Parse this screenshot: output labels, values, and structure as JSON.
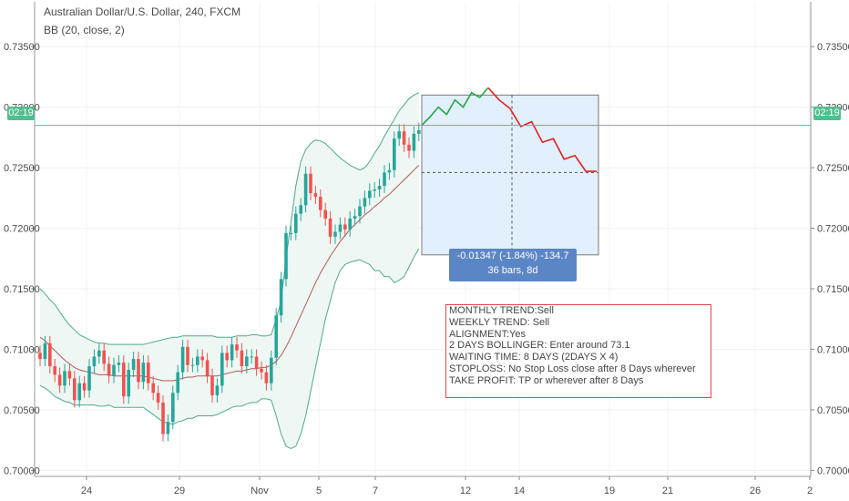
{
  "header": {
    "title": "Australian Dollar/U.S. Dollar, 240, FXCM",
    "indicator": "BB (20, close, 2)"
  },
  "price_tag": "02:19",
  "measure": {
    "line1": "-0.01347 (-1.84%) -134.7",
    "line2": "36 bars, 8d"
  },
  "notes": [
    "MONTHLY TREND:Sell",
    "WEEKLY TREND: Sell",
    "ALIGNMENT:Yes",
    "2 DAYS BOLLINGER: Enter around 73.1",
    "WAITING TIME: 8 DAYS (2DAYS X 4)",
    "STOPLOSS: No Stop Loss close after 8 Days wherever",
    "TAKE PROFIT: TP or wherever after 8 Days"
  ],
  "colors": {
    "up": "#26a69a",
    "down": "#ef5350",
    "bb_band": "#4fa88f",
    "bb_basis": "#b0595a",
    "bb_fill": "#eef7f3",
    "projection_up": "#26a645",
    "projection_down": "#e02020",
    "range_fill": "#ddecfb",
    "current_line": "#4fbf8f"
  },
  "chart_data": {
    "type": "candlestick",
    "symbol": "Australian Dollar/U.S. Dollar",
    "timeframe": "240",
    "source": "FXCM",
    "ylim": [
      0.6995,
      0.7387
    ],
    "y_ticks": [
      "0.70000",
      "0.70500",
      "0.71000",
      "0.71500",
      "0.72000",
      "0.72500",
      "0.73000",
      "0.73500"
    ],
    "x_ticks": [
      "24",
      "29",
      "Nov",
      "5",
      "7",
      "12",
      "14",
      "19",
      "21",
      "26",
      "2"
    ],
    "current_price": 0.7285,
    "close": [
      0.7092,
      0.7105,
      0.7086,
      0.7079,
      0.707,
      0.7082,
      0.7076,
      0.7058,
      0.7072,
      0.7066,
      0.7086,
      0.7094,
      0.7099,
      0.7088,
      0.7078,
      0.7087,
      0.7089,
      0.7061,
      0.7083,
      0.7092,
      0.7073,
      0.7089,
      0.7072,
      0.7064,
      0.7056,
      0.703,
      0.704,
      0.7064,
      0.7081,
      0.7102,
      0.7087,
      0.7087,
      0.7094,
      0.7091,
      0.7078,
      0.7062,
      0.707,
      0.7097,
      0.7091,
      0.7104,
      0.7099,
      0.7086,
      0.7094,
      0.7094,
      0.7084,
      0.7081,
      0.7072,
      0.7093,
      0.7128,
      0.7158,
      0.7196,
      0.7196,
      0.7212,
      0.7219,
      0.7245,
      0.7229,
      0.7226,
      0.7215,
      0.7208,
      0.7193,
      0.7197,
      0.7203,
      0.7199,
      0.7208,
      0.721,
      0.7218,
      0.7225,
      0.7231,
      0.7232,
      0.7235,
      0.7246,
      0.7248,
      0.7274,
      0.728,
      0.7269,
      0.7264,
      0.7278,
      0.7281
    ],
    "bollinger": {
      "period": 20,
      "source": "close",
      "stddev": 2,
      "basis": [
        0.711,
        0.7107,
        0.7103,
        0.7099,
        0.7095,
        0.7091,
        0.7088,
        0.7085,
        0.7083,
        0.7082,
        0.7081,
        0.708,
        0.7079,
        0.7079,
        0.7079,
        0.7078,
        0.7078,
        0.7078,
        0.7078,
        0.7078,
        0.7078,
        0.7078,
        0.7077,
        0.7076,
        0.7075,
        0.7074,
        0.7074,
        0.7074,
        0.7075,
        0.7076,
        0.7077,
        0.7077,
        0.7078,
        0.7078,
        0.7078,
        0.7078,
        0.7078,
        0.7079,
        0.708,
        0.7081,
        0.7082,
        0.7082,
        0.7083,
        0.7084,
        0.7084,
        0.7085,
        0.7085,
        0.7087,
        0.709,
        0.7095,
        0.7102,
        0.711,
        0.7119,
        0.7128,
        0.7137,
        0.7146,
        0.7155,
        0.7163,
        0.717,
        0.7177,
        0.7183,
        0.7189,
        0.7194,
        0.7199,
        0.7203,
        0.7207,
        0.7211,
        0.7214,
        0.7218,
        0.7221,
        0.7225,
        0.7228,
        0.7232,
        0.7236,
        0.724,
        0.7244,
        0.7248,
        0.7252
      ],
      "upper": [
        0.715,
        0.7146,
        0.7141,
        0.7137,
        0.7131,
        0.7125,
        0.712,
        0.7116,
        0.7112,
        0.711,
        0.7108,
        0.7106,
        0.7105,
        0.7105,
        0.7104,
        0.7104,
        0.7104,
        0.7104,
        0.7104,
        0.7104,
        0.7104,
        0.7104,
        0.7105,
        0.7106,
        0.7107,
        0.7108,
        0.7109,
        0.711,
        0.711,
        0.7111,
        0.7111,
        0.7111,
        0.7111,
        0.7111,
        0.7111,
        0.7111,
        0.711,
        0.711,
        0.711,
        0.711,
        0.7111,
        0.7111,
        0.7111,
        0.7112,
        0.7112,
        0.7111,
        0.7111,
        0.7112,
        0.7125,
        0.714,
        0.7175,
        0.7205,
        0.7235,
        0.7255,
        0.7265,
        0.727,
        0.7273,
        0.7272,
        0.727,
        0.7266,
        0.7262,
        0.7258,
        0.7255,
        0.7252,
        0.725,
        0.7248,
        0.725,
        0.7255,
        0.7262,
        0.7268,
        0.7276,
        0.7283,
        0.729,
        0.7297,
        0.7302,
        0.7307,
        0.731,
        0.7312
      ],
      "lower": [
        0.707,
        0.7068,
        0.7065,
        0.7061,
        0.7059,
        0.7057,
        0.7056,
        0.7054,
        0.7054,
        0.7054,
        0.7054,
        0.7054,
        0.7053,
        0.7053,
        0.7054,
        0.7052,
        0.7052,
        0.7052,
        0.7052,
        0.7052,
        0.7052,
        0.7052,
        0.7049,
        0.7046,
        0.7043,
        0.704,
        0.7039,
        0.7038,
        0.704,
        0.7041,
        0.7043,
        0.7043,
        0.7045,
        0.7045,
        0.7045,
        0.7045,
        0.7046,
        0.7048,
        0.705,
        0.7052,
        0.7053,
        0.7053,
        0.7055,
        0.7056,
        0.7056,
        0.7059,
        0.7059,
        0.7058,
        0.7045,
        0.703,
        0.702,
        0.7018,
        0.702,
        0.703,
        0.7045,
        0.7065,
        0.7085,
        0.7105,
        0.7125,
        0.714,
        0.7155,
        0.7165,
        0.717,
        0.7172,
        0.7173,
        0.7174,
        0.7172,
        0.717,
        0.7165,
        0.7165,
        0.716,
        0.716,
        0.7155,
        0.7157,
        0.716,
        0.7168,
        0.7176,
        0.7183
      ]
    },
    "projection": {
      "up_path": [
        0.7285,
        0.7292,
        0.73,
        0.7294,
        0.7306,
        0.73,
        0.7312,
        0.7308,
        0.7316
      ],
      "down_path": [
        0.7316,
        0.7306,
        0.7299,
        0.7284,
        0.7288,
        0.7271,
        0.7274,
        0.7257,
        0.726,
        0.7247,
        0.7247
      ]
    },
    "price_range": {
      "top": 0.731,
      "bottom": 0.7178,
      "start_level": 0.7246,
      "change": -0.01347,
      "change_pct": -1.84,
      "pips": -134.7,
      "bars": 36,
      "days": "8d"
    }
  }
}
